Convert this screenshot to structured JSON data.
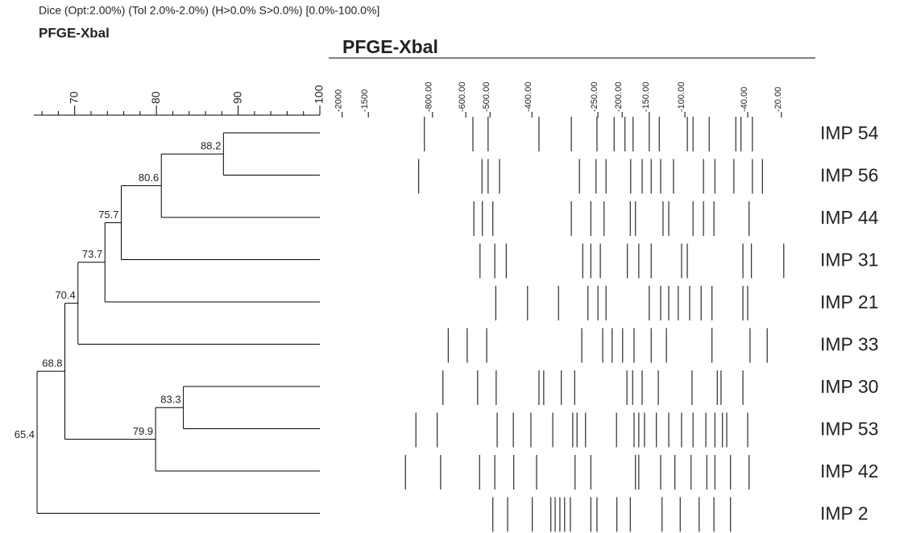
{
  "chart_data": {
    "type": "dendrogram",
    "title": "Dice (Opt:2.00%) (Tol 2.0%-2.0%) (H>0.0% S>0.0%) [0.0%-100.0%]",
    "subtitle": "PFGE-Xbal",
    "gel_title": "PFGE-Xbal",
    "leaves": [
      "IMP 54",
      "IMP 56",
      "IMP 44",
      "IMP 31",
      "IMP 21",
      "IMP 33",
      "IMP 30",
      "IMP 53",
      "IMP 42",
      "IMP 2"
    ],
    "merges": [
      {
        "children": [
          0,
          1
        ],
        "value": 88.2
      },
      {
        "children": [
          10,
          2
        ],
        "value": 80.6
      },
      {
        "children": [
          11,
          3
        ],
        "value": 75.7
      },
      {
        "children": [
          12,
          4
        ],
        "value": 73.7
      },
      {
        "children": [
          13,
          5
        ],
        "value": 70.4
      },
      {
        "children": [
          6,
          7
        ],
        "value": 83.3
      },
      {
        "children": [
          15,
          8
        ],
        "value": 79.9
      },
      {
        "children": [
          14,
          16
        ],
        "value": 68.8
      },
      {
        "children": [
          17,
          9
        ],
        "value": 65.4
      }
    ],
    "xlim": [
      65,
      100
    ],
    "xticks": [
      70,
      80,
      90,
      100
    ],
    "xminorticks": [
      66,
      68,
      72,
      74,
      76,
      78,
      82,
      84,
      86,
      88,
      92,
      94,
      96,
      98
    ],
    "gel": {
      "xlim": [
        0,
        100
      ],
      "ticks": [
        {
          "value": 0.8,
          "label": "-2000"
        },
        {
          "value": 6.3,
          "label": "-1500"
        },
        {
          "value": 19.8,
          "label": "-800.00"
        },
        {
          "value": 26.8,
          "label": "-600.00"
        },
        {
          "value": 31.9,
          "label": "-500.00"
        },
        {
          "value": 40.7,
          "label": "-400.00"
        },
        {
          "value": 54.6,
          "label": "-250.00"
        },
        {
          "value": 59.7,
          "label": "-200.00"
        },
        {
          "value": 65.4,
          "label": "-150.00"
        },
        {
          "value": 72.9,
          "label": "-100.00"
        },
        {
          "value": 86.1,
          "label": "-40.00"
        },
        {
          "value": 93.2,
          "label": "-20.00"
        }
      ],
      "lanes": [
        [
          18.1,
          28.3,
          31.5,
          42.2,
          49.0,
          54.4,
          58.0,
          60.3,
          62.0,
          65.4,
          67.5,
          73.4,
          74.6,
          78.0,
          83.6,
          84.7,
          87.1
        ],
        [
          16.9,
          30.2,
          31.5,
          33.9,
          50.7,
          54.2,
          56.3,
          61.5,
          63.9,
          65.8,
          67.8,
          70.5,
          76.8,
          79.2,
          83.2,
          87.1,
          89.2
        ],
        [
          28.5,
          30.3,
          32.5,
          49.0,
          53.1,
          55.9,
          61.4,
          62.5,
          68.3,
          69.5,
          74.6,
          76.8,
          79.0,
          86.4
        ],
        [
          29.8,
          32.9,
          35.3,
          51.4,
          53.1,
          55.1,
          60.8,
          63.2,
          65.8,
          72.2,
          73.4,
          85.1,
          86.9,
          93.7
        ],
        [
          33.1,
          39.8,
          46.3,
          52.5,
          54.6,
          56.3,
          65.4,
          67.8,
          69.5,
          71.5,
          73.9,
          76.3,
          78.6,
          85.1,
          86.1
        ],
        [
          23.1,
          27.1,
          31.2,
          51.2,
          55.6,
          57.6,
          59.8,
          62.2,
          65.8,
          69.0,
          78.6,
          86.6,
          90.2
        ],
        [
          22.0,
          29.3,
          33.2,
          42.2,
          43.2,
          46.9,
          49.7,
          60.7,
          61.9,
          63.9,
          67.3,
          74.4,
          79.7,
          80.5,
          85.1
        ],
        [
          16.3,
          20.8,
          33.4,
          36.8,
          40.5,
          45.1,
          49.3,
          50.2,
          52.0,
          58.5,
          62.2,
          63.2,
          64.4,
          66.9,
          69.5,
          72.2,
          74.6,
          77.3,
          79.2,
          80.8,
          81.7,
          86.1
        ],
        [
          14.1,
          21.5,
          29.7,
          32.9,
          36.9,
          41.7,
          49.8,
          53.1,
          62.5,
          63.2,
          67.8,
          70.8,
          74.2,
          77.5,
          79.2,
          82.5,
          86.4
        ],
        [
          32.5,
          35.6,
          40.8,
          44.7,
          45.6,
          46.6,
          47.6,
          48.8,
          53.1,
          54.4,
          58.6,
          61.4,
          68.1,
          71.9,
          75.9,
          79.0,
          82.5
        ]
      ]
    }
  }
}
